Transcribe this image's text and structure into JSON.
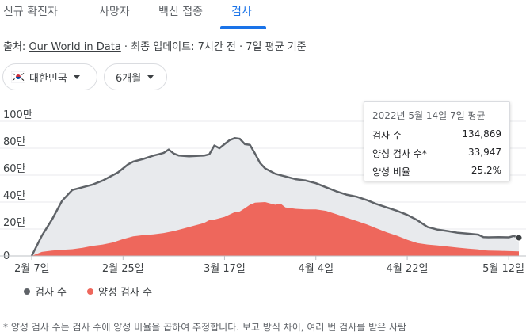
{
  "tabs": [
    {
      "label": "신규 확진자",
      "active": false
    },
    {
      "label": "사망자",
      "active": false
    },
    {
      "label": "백신 접종",
      "active": false
    },
    {
      "label": "검사",
      "active": true
    }
  ],
  "source": {
    "prefix": "출처: ",
    "link": "Our World in Data",
    "suffix": " · 최종 업데이트: 7시간 전 · 7일 평균 기준"
  },
  "filters": {
    "country": {
      "label": "대한민국",
      "flag_icon": "south-korea-flag-icon"
    },
    "period": {
      "label": "6개월"
    }
  },
  "tooltip": {
    "title": "2022년 5월 14일 7일 평균",
    "rows": [
      {
        "label": "검사 수",
        "value": "134,869"
      },
      {
        "label": "양성 검사 수*",
        "value": "33,947"
      },
      {
        "label": "양성 비율",
        "value": "25.2%"
      }
    ]
  },
  "legend": [
    {
      "label": "검사 수",
      "color": "#5f6368"
    },
    {
      "label": "양성 검사 수",
      "color": "#ee675c"
    }
  ],
  "footnote": "* 양성 검사 수는 검사 수에 양성 비율을 곱하여 추정합니다. 보고 방식 차이, 여러 번 검사를 받은 사람",
  "chart_data": {
    "type": "area",
    "y_ticks": [
      "0",
      "20만",
      "40만",
      "60만",
      "80만",
      "100만"
    ],
    "y_tick_values": [
      0,
      200000,
      400000,
      600000,
      800000,
      1000000
    ],
    "ylim": [
      0,
      1000000
    ],
    "x_ticks": [
      "2월 7일",
      "2월 25일",
      "3월 17일",
      "4월 4일",
      "4월 22일",
      "5월 12일"
    ],
    "x_tick_days": [
      0,
      18,
      38,
      56,
      74,
      94
    ],
    "xlim_days": [
      0,
      96
    ],
    "grid": true,
    "series": [
      {
        "name": "검사 수",
        "color": "#5f6368",
        "fill": "#e8eaed",
        "points": [
          [
            0,
            0
          ],
          [
            2,
            150000
          ],
          [
            4,
            270000
          ],
          [
            6,
            410000
          ],
          [
            8,
            490000
          ],
          [
            10,
            510000
          ],
          [
            12,
            530000
          ],
          [
            14,
            560000
          ],
          [
            16,
            600000
          ],
          [
            17,
            620000
          ],
          [
            18,
            650000
          ],
          [
            19,
            680000
          ],
          [
            20,
            700000
          ],
          [
            22,
            720000
          ],
          [
            24,
            745000
          ],
          [
            25,
            755000
          ],
          [
            26,
            765000
          ],
          [
            27,
            790000
          ],
          [
            28,
            760000
          ],
          [
            29,
            745000
          ],
          [
            31,
            740000
          ],
          [
            34,
            745000
          ],
          [
            35,
            755000
          ],
          [
            36,
            820000
          ],
          [
            37,
            800000
          ],
          [
            38,
            830000
          ],
          [
            39,
            860000
          ],
          [
            40,
            875000
          ],
          [
            41,
            870000
          ],
          [
            42,
            830000
          ],
          [
            43,
            825000
          ],
          [
            44,
            760000
          ],
          [
            45,
            690000
          ],
          [
            46,
            650000
          ],
          [
            48,
            610000
          ],
          [
            50,
            590000
          ],
          [
            52,
            570000
          ],
          [
            54,
            560000
          ],
          [
            56,
            540000
          ],
          [
            58,
            510000
          ],
          [
            60,
            480000
          ],
          [
            62,
            455000
          ],
          [
            64,
            440000
          ],
          [
            66,
            415000
          ],
          [
            68,
            385000
          ],
          [
            70,
            360000
          ],
          [
            72,
            335000
          ],
          [
            74,
            305000
          ],
          [
            76,
            265000
          ],
          [
            78,
            215000
          ],
          [
            80,
            195000
          ],
          [
            82,
            185000
          ],
          [
            84,
            172000
          ],
          [
            86,
            165000
          ],
          [
            88,
            158000
          ],
          [
            89,
            140000
          ],
          [
            90,
            138000
          ],
          [
            92,
            140000
          ],
          [
            94,
            138000
          ],
          [
            95,
            148000
          ],
          [
            96,
            135000
          ]
        ]
      },
      {
        "name": "양성 검사 수",
        "color": "#ee675c",
        "fill": "#ee675c",
        "points": [
          [
            0,
            0
          ],
          [
            2,
            30000
          ],
          [
            4,
            40000
          ],
          [
            6,
            45000
          ],
          [
            8,
            50000
          ],
          [
            10,
            60000
          ],
          [
            12,
            75000
          ],
          [
            14,
            85000
          ],
          [
            16,
            100000
          ],
          [
            18,
            125000
          ],
          [
            20,
            145000
          ],
          [
            22,
            155000
          ],
          [
            24,
            160000
          ],
          [
            26,
            170000
          ],
          [
            28,
            185000
          ],
          [
            30,
            205000
          ],
          [
            32,
            225000
          ],
          [
            34,
            245000
          ],
          [
            35,
            265000
          ],
          [
            36,
            270000
          ],
          [
            38,
            290000
          ],
          [
            40,
            325000
          ],
          [
            41,
            330000
          ],
          [
            42,
            355000
          ],
          [
            43,
            380000
          ],
          [
            44,
            395000
          ],
          [
            46,
            400000
          ],
          [
            47,
            390000
          ],
          [
            48,
            380000
          ],
          [
            49,
            390000
          ],
          [
            50,
            360000
          ],
          [
            52,
            350000
          ],
          [
            54,
            345000
          ],
          [
            56,
            345000
          ],
          [
            58,
            335000
          ],
          [
            60,
            310000
          ],
          [
            62,
            285000
          ],
          [
            64,
            260000
          ],
          [
            66,
            235000
          ],
          [
            68,
            205000
          ],
          [
            70,
            175000
          ],
          [
            72,
            150000
          ],
          [
            74,
            120000
          ],
          [
            76,
            95000
          ],
          [
            78,
            85000
          ],
          [
            80,
            78000
          ],
          [
            82,
            70000
          ],
          [
            84,
            62000
          ],
          [
            86,
            55000
          ],
          [
            88,
            48000
          ],
          [
            89,
            42000
          ],
          [
            90,
            40000
          ],
          [
            92,
            38000
          ],
          [
            94,
            36000
          ],
          [
            96,
            34000
          ]
        ]
      }
    ],
    "highlight_day": 96
  }
}
